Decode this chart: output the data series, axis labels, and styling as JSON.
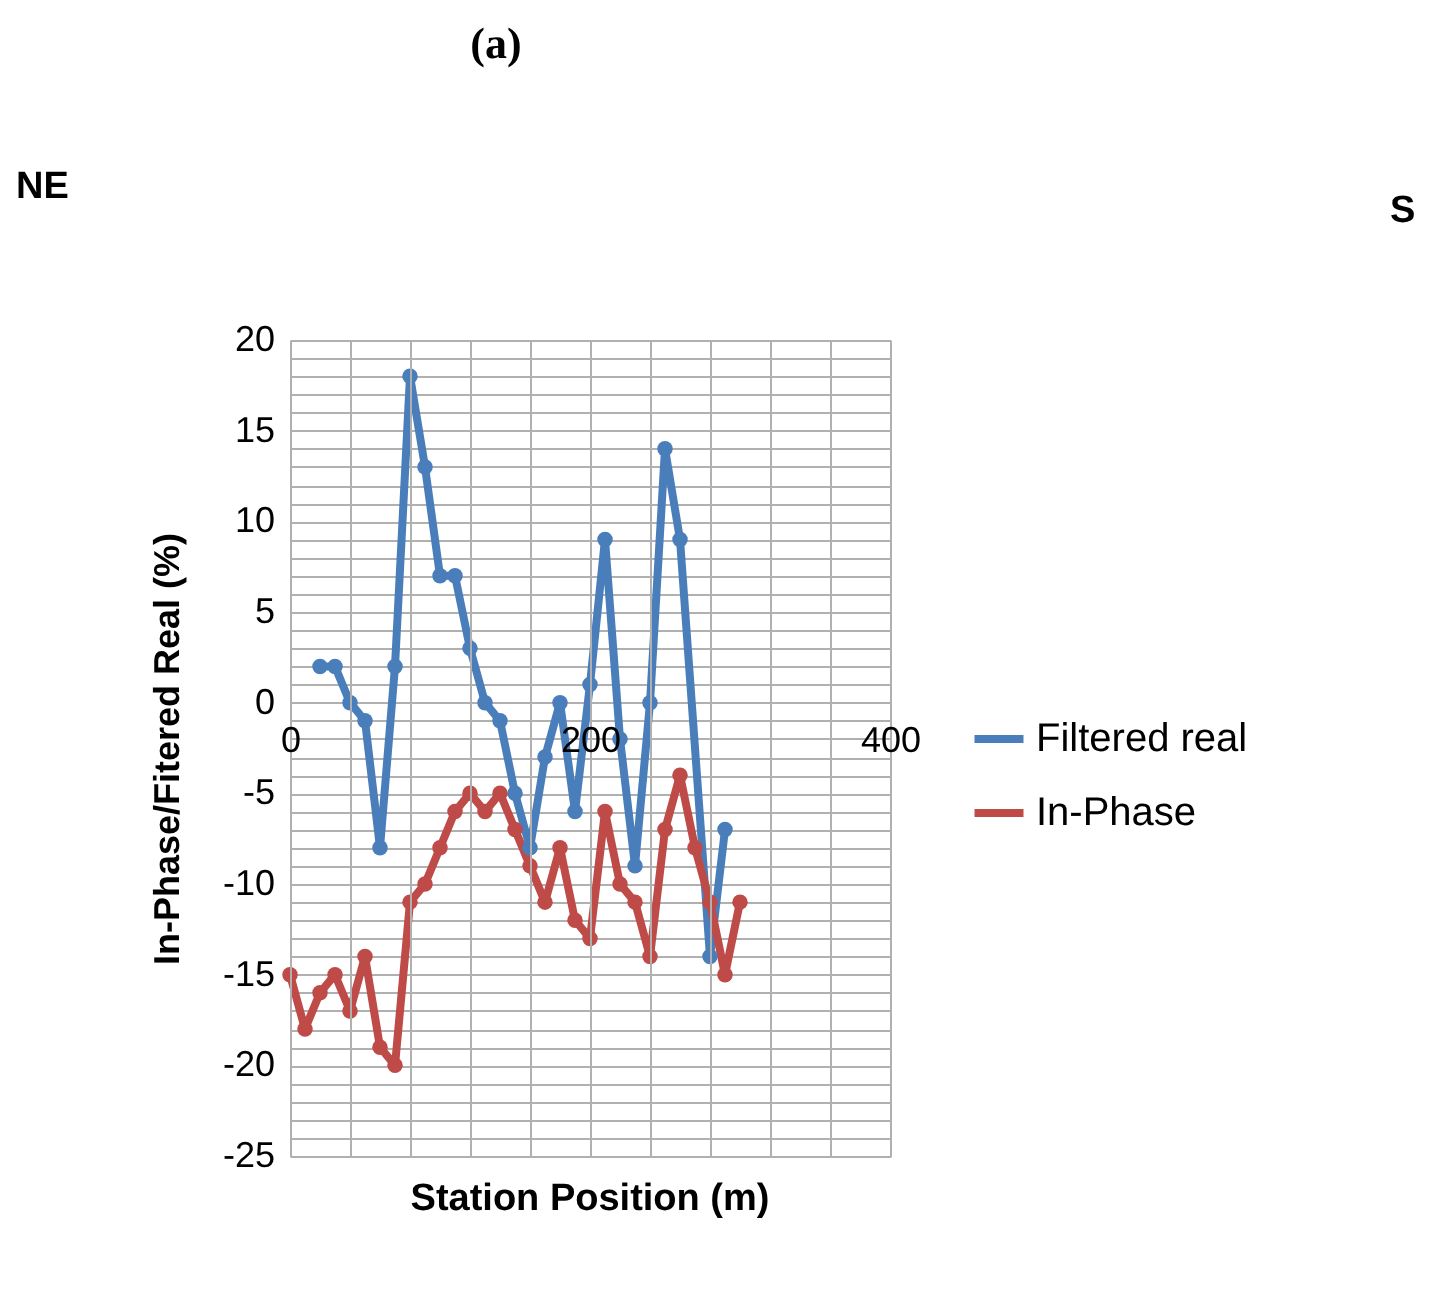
{
  "chart_data": {
    "type": "line",
    "title": "(a)",
    "xlabel": "Station Position (m)",
    "ylabel": "In-Phase/Fitered Real (%)",
    "annotations": [
      "NE",
      "S"
    ],
    "series": [
      {
        "name": "Filtered real",
        "color": "#4a7ebb",
        "x": [
          20,
          30,
          40,
          50,
          60,
          70,
          80,
          90,
          100,
          110,
          120,
          130,
          140,
          150,
          160,
          170,
          180,
          190,
          200,
          210,
          220,
          230,
          240,
          250,
          260,
          280,
          290
        ],
        "values": [
          2,
          2,
          0,
          -1,
          -8,
          2,
          18,
          13,
          7,
          7,
          3,
          0,
          -1,
          -5,
          -8,
          -3,
          0,
          -6,
          1,
          9,
          -2,
          -9,
          0,
          14,
          9,
          -14,
          -7
        ]
      },
      {
        "name": "In-Phase",
        "color": "#be4b48",
        "x": [
          0,
          10,
          20,
          30,
          40,
          50,
          60,
          70,
          80,
          90,
          100,
          110,
          120,
          130,
          140,
          150,
          160,
          170,
          180,
          190,
          200,
          210,
          220,
          230,
          240,
          250,
          260,
          270,
          280,
          290,
          300
        ],
        "values": [
          -15,
          -18,
          -16,
          -15,
          -17,
          -14,
          -19,
          -20,
          -11,
          -10,
          -8,
          -6,
          -5,
          -6,
          -5,
          -7,
          -9,
          -11,
          -8,
          -12,
          -13,
          -6,
          -10,
          -11,
          -14,
          -7,
          -4,
          -8,
          -11,
          -15,
          -11
        ]
      }
    ],
    "xlim": [
      0,
      400
    ],
    "xticks": [
      0,
      {
        "value": 40,
        "label": null
      },
      {
        "value": 80,
        "label": null
      },
      {
        "value": 120,
        "label": null
      },
      {
        "value": 160,
        "label": null
      },
      200,
      {
        "value": 240,
        "label": null
      },
      {
        "value": 280,
        "label": null
      },
      {
        "value": 320,
        "label": null
      },
      {
        "value": 360,
        "label": null
      },
      400
    ],
    "ylim": [
      -25,
      20
    ],
    "yticks": [
      -25,
      {
        "value": -24,
        "label": null
      },
      {
        "value": -23,
        "label": null
      },
      {
        "value": -22,
        "label": null
      },
      {
        "value": -21,
        "label": null
      },
      -20,
      {
        "value": -19,
        "label": null
      },
      {
        "value": -18,
        "label": null
      },
      {
        "value": -17,
        "label": null
      },
      {
        "value": -16,
        "label": null
      },
      -15,
      {
        "value": -14,
        "label": null
      },
      {
        "value": -13,
        "label": null
      },
      {
        "value": -12,
        "label": null
      },
      {
        "value": -11,
        "label": null
      },
      -10,
      {
        "value": -9,
        "label": null
      },
      {
        "value": -8,
        "label": null
      },
      {
        "value": -7,
        "label": null
      },
      {
        "value": -6,
        "label": null
      },
      -5,
      {
        "value": -4,
        "label": null
      },
      {
        "value": -3,
        "label": null
      },
      {
        "value": -2,
        "label": null
      },
      {
        "value": -1,
        "label": null
      },
      0,
      {
        "value": 1,
        "label": null
      },
      {
        "value": 2,
        "label": null
      },
      {
        "value": 3,
        "label": null
      },
      {
        "value": 4,
        "label": null
      },
      5,
      {
        "value": 6,
        "label": null
      },
      {
        "value": 7,
        "label": null
      },
      {
        "value": 8,
        "label": null
      },
      {
        "value": 9,
        "label": null
      },
      10,
      {
        "value": 11,
        "label": null
      },
      {
        "value": 12,
        "label": null
      },
      {
        "value": 13,
        "label": null
      },
      {
        "value": 14,
        "label": null
      },
      15,
      {
        "value": 16,
        "label": null
      },
      {
        "value": 17,
        "label": null
      },
      {
        "value": 18,
        "label": null
      },
      {
        "value": 19,
        "label": null
      },
      20
    ],
    "grid": true,
    "legend": "right",
    "marker": "circle",
    "line_style": "solid"
  }
}
